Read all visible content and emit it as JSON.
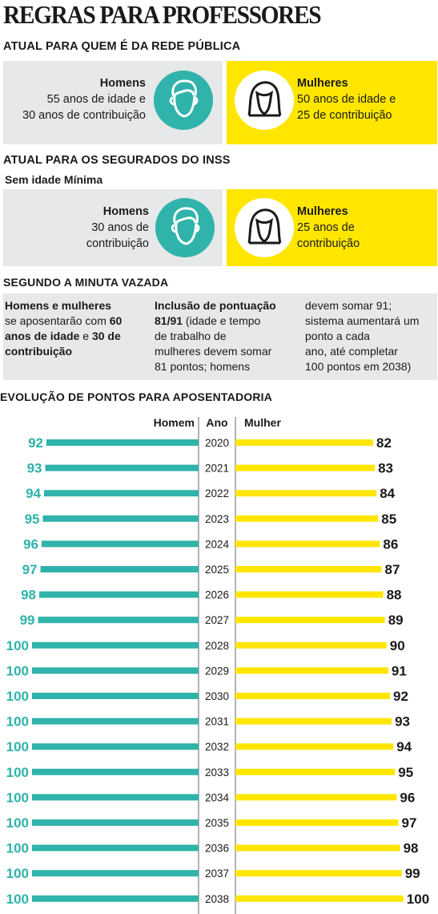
{
  "title": "REGRAS PARA PROFESSORES",
  "section1": {
    "heading": "ATUAL PARA QUEM É DA REDE PÚBLICA",
    "men": {
      "title": "Homens",
      "line1": "55 anos de idade e",
      "line2": "30 anos de contribuição"
    },
    "women": {
      "title": "Mulheres",
      "line1": "50 anos de idade e",
      "line2": "25 de contribuição"
    }
  },
  "section2": {
    "heading": "ATUAL PARA OS SEGURADOS DO INSS",
    "subheading": "Sem idade Mínima",
    "men": {
      "title": "Homens",
      "line1": "30 anos de",
      "line2": "contribuição"
    },
    "women": {
      "title": "Mulheres",
      "line1": "25 anos de",
      "line2": "contribuição"
    }
  },
  "section3": {
    "heading": "SEGUNDO A MINUTA VAZADA",
    "col1": {
      "title": "Homens e mulheres",
      "t1": "se aposentarão com ",
      "b1": "60",
      "b2": "anos de idade",
      "t2": " e ",
      "b3": "30 de",
      "b4": "contribuição"
    },
    "col2": {
      "title": "Inclusão de pontuação",
      "b1": "81/91",
      "l1": " (idade e tempo",
      "l2": "de trabalho de",
      "l3": "mulheres devem somar",
      "l4": "81 pontos; homens"
    },
    "col3": {
      "l1": "devem somar 91;",
      "l2": "sistema aumentará um",
      "l3": "ponto a cada",
      "l4": "ano, até completar",
      "l5": "100 pontos em 2038)"
    }
  },
  "colors": {
    "teal": "#2fb3aa",
    "yellow": "#ffe600",
    "grey": "#e6e8e9"
  },
  "chart_data": {
    "type": "bar",
    "title": "EVOLUÇÃO DE PONTOS PARA APOSENTADORIA",
    "headers": {
      "men": "Homem",
      "year": "Ano",
      "women": "Mulher"
    },
    "categories": [
      "2020",
      "2021",
      "2022",
      "2023",
      "2024",
      "2025",
      "2026",
      "2027",
      "2028",
      "2029",
      "2030",
      "2031",
      "2032",
      "2033",
      "2034",
      "2035",
      "2036",
      "2037",
      "2038"
    ],
    "series": [
      {
        "name": "Homem",
        "values": [
          92,
          93,
          94,
          95,
          96,
          97,
          98,
          99,
          100,
          100,
          100,
          100,
          100,
          100,
          100,
          100,
          100,
          100,
          100
        ]
      },
      {
        "name": "Mulher",
        "values": [
          82,
          83,
          84,
          85,
          86,
          87,
          88,
          89,
          90,
          91,
          92,
          93,
          94,
          95,
          96,
          97,
          98,
          99,
          100
        ]
      }
    ]
  }
}
